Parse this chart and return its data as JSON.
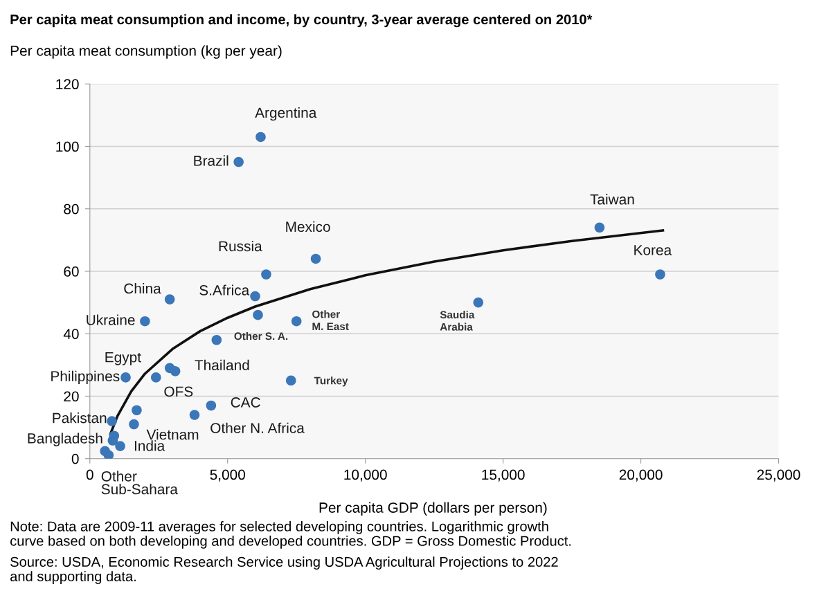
{
  "chart_data": {
    "type": "scatter",
    "title": "Per capita meat consumption and income, by country, 3-year average centered on 2010*",
    "ylabel": "Per capita meat consumption (kg per year)",
    "xlabel": "Per capita GDP (dollars per person)",
    "xlim": [
      0,
      25000
    ],
    "xticks": [
      0,
      {
        "value": 5000,
        "label": "5,000"
      },
      {
        "value": 10000,
        "label": "10,000"
      },
      {
        "value": 15000,
        "label": "15,000"
      },
      {
        "value": 20000,
        "label": "20,000"
      },
      {
        "value": 25000,
        "label": "25,000"
      }
    ],
    "ylim": [
      0,
      120
    ],
    "yticks": [
      0,
      20,
      40,
      60,
      80,
      100,
      120
    ],
    "grid": "y",
    "marker": "circle",
    "legend": false,
    "series": [
      {
        "color": "#3b76b9",
        "x": [
          6200,
          5400,
          8200,
          6400,
          6000,
          2900,
          6100,
          7500,
          2000,
          4600,
          18500,
          20700,
          14100,
          7300,
          2900,
          3100,
          1300,
          2400,
          4400,
          3800,
          1700,
          1600,
          800,
          880,
          830,
          1100,
          550,
          680
        ],
        "values": [
          103,
          95,
          64,
          59,
          52,
          51,
          46,
          44,
          44,
          38,
          74,
          59,
          50,
          25,
          29,
          28,
          26,
          26,
          17,
          14,
          15.5,
          11,
          12,
          7.3,
          5.8,
          4,
          2.4,
          1.1
        ]
      },
      {
        "type": "line",
        "color": "#111111",
        "line_style": "solid",
        "marker": "none",
        "x": [
          750,
          1000,
          1500,
          2000,
          3000,
          4000,
          5000,
          6000,
          8000,
          10000,
          12500,
          15000,
          17500,
          20800
        ],
        "values": [
          8.0,
          13.6,
          21.5,
          27.2,
          35.1,
          40.8,
          45.1,
          48.7,
          54.3,
          58.7,
          63.1,
          66.7,
          69.7,
          73.1
        ]
      }
    ],
    "annotations": [
      {
        "text": "Argentina",
        "x": 6200,
        "y": 103
      },
      {
        "text": "Brazil",
        "x": 5400,
        "y": 95
      },
      {
        "text": "Mexico",
        "x": 8200,
        "y": 64
      },
      {
        "text": "Russia",
        "x": 6400,
        "y": 59
      },
      {
        "text": "S.Africa",
        "x": 6000,
        "y": 52
      },
      {
        "text": "China",
        "x": 2900,
        "y": 51
      },
      {
        "text": "Other\nM. East",
        "x": 7500,
        "y": 44
      },
      {
        "text": "Ukraine",
        "x": 2000,
        "y": 44
      },
      {
        "text": "Other S. A.",
        "x": 4600,
        "y": 38
      },
      {
        "text": "Taiwan",
        "x": 18500,
        "y": 74
      },
      {
        "text": "Korea",
        "x": 20700,
        "y": 59
      },
      {
        "text": "Saudia\nArabia",
        "x": 14100,
        "y": 50
      },
      {
        "text": "Turkey",
        "x": 7300,
        "y": 25
      },
      {
        "text": "Egypt",
        "x": 2900,
        "y": 29
      },
      {
        "text": "Thailand",
        "x": 3100,
        "y": 28
      },
      {
        "text": "Philippines",
        "x": 1300,
        "y": 26
      },
      {
        "text": "OFS",
        "x": 2400,
        "y": 26
      },
      {
        "text": "CAC",
        "x": 4400,
        "y": 17
      },
      {
        "text": "Other N. Africa",
        "x": 3800,
        "y": 14
      },
      {
        "text": "Vietnam",
        "x": 1600,
        "y": 11
      },
      {
        "text": "Pakistan",
        "x": 800,
        "y": 12
      },
      {
        "text": "Bangladesh",
        "x": 550,
        "y": 2.4
      },
      {
        "text": "India",
        "x": 1100,
        "y": 4
      },
      {
        "text": "Other\nSub-Sahara",
        "x": 680,
        "y": 1.1
      },
      "Note: Data are 2009-11 averages for selected developing countries. Logarithmic growth\ncurve based on both developing and developed countries. GDP = Gross Domestic Product.",
      "Source: USDA, Economic Research Service using USDA Agricultural Projections to 2022\nand supporting data."
    ]
  }
}
